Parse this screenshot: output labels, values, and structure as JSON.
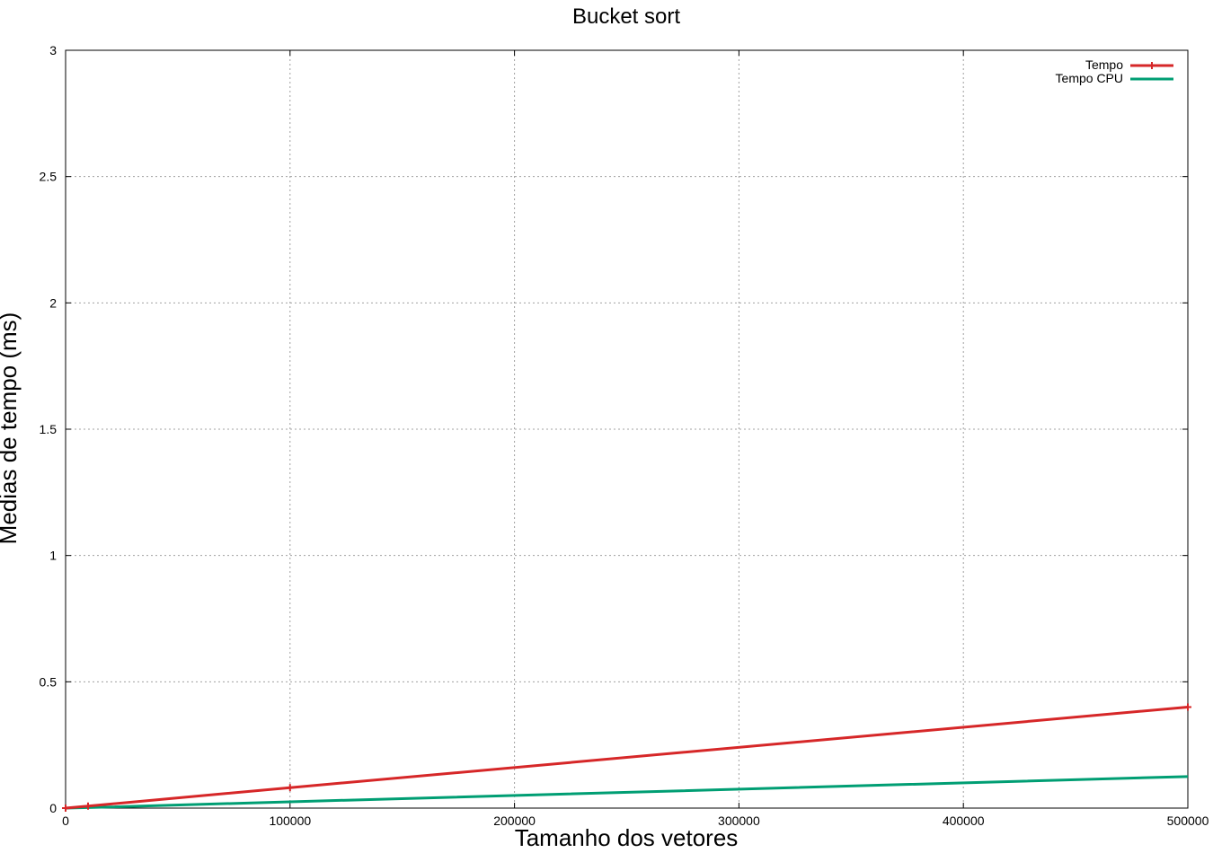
{
  "chart_data": {
    "type": "line",
    "title": "Bucket sort",
    "xlabel": "Tamanho dos vetores",
    "ylabel": "Medias de tempo (ms)",
    "xlim": [
      0,
      500000
    ],
    "ylim": [
      0,
      3
    ],
    "xticks": [
      0,
      100000,
      200000,
      300000,
      400000,
      500000
    ],
    "xtick_labels": [
      "0",
      "100000",
      "200000",
      "300000",
      "400000",
      "500000"
    ],
    "yticks": [
      0,
      0.5,
      1,
      1.5,
      2,
      2.5,
      3
    ],
    "ytick_labels": [
      "0",
      "0.5",
      "1",
      "1.5",
      "2",
      "2.5",
      "3"
    ],
    "grid": true,
    "legend_position": "top-right",
    "series": [
      {
        "name": "Tempo",
        "color": "#d62728",
        "marker": "plus",
        "x": [
          0,
          10000,
          100000,
          500000
        ],
        "y": [
          0.0,
          0.008,
          0.081,
          0.4
        ]
      },
      {
        "name": "Tempo CPU",
        "color": "#009e73",
        "marker": "none",
        "x": [
          0,
          10000,
          100000,
          500000
        ],
        "y": [
          0.0,
          0.002,
          0.025,
          0.125
        ]
      }
    ]
  }
}
